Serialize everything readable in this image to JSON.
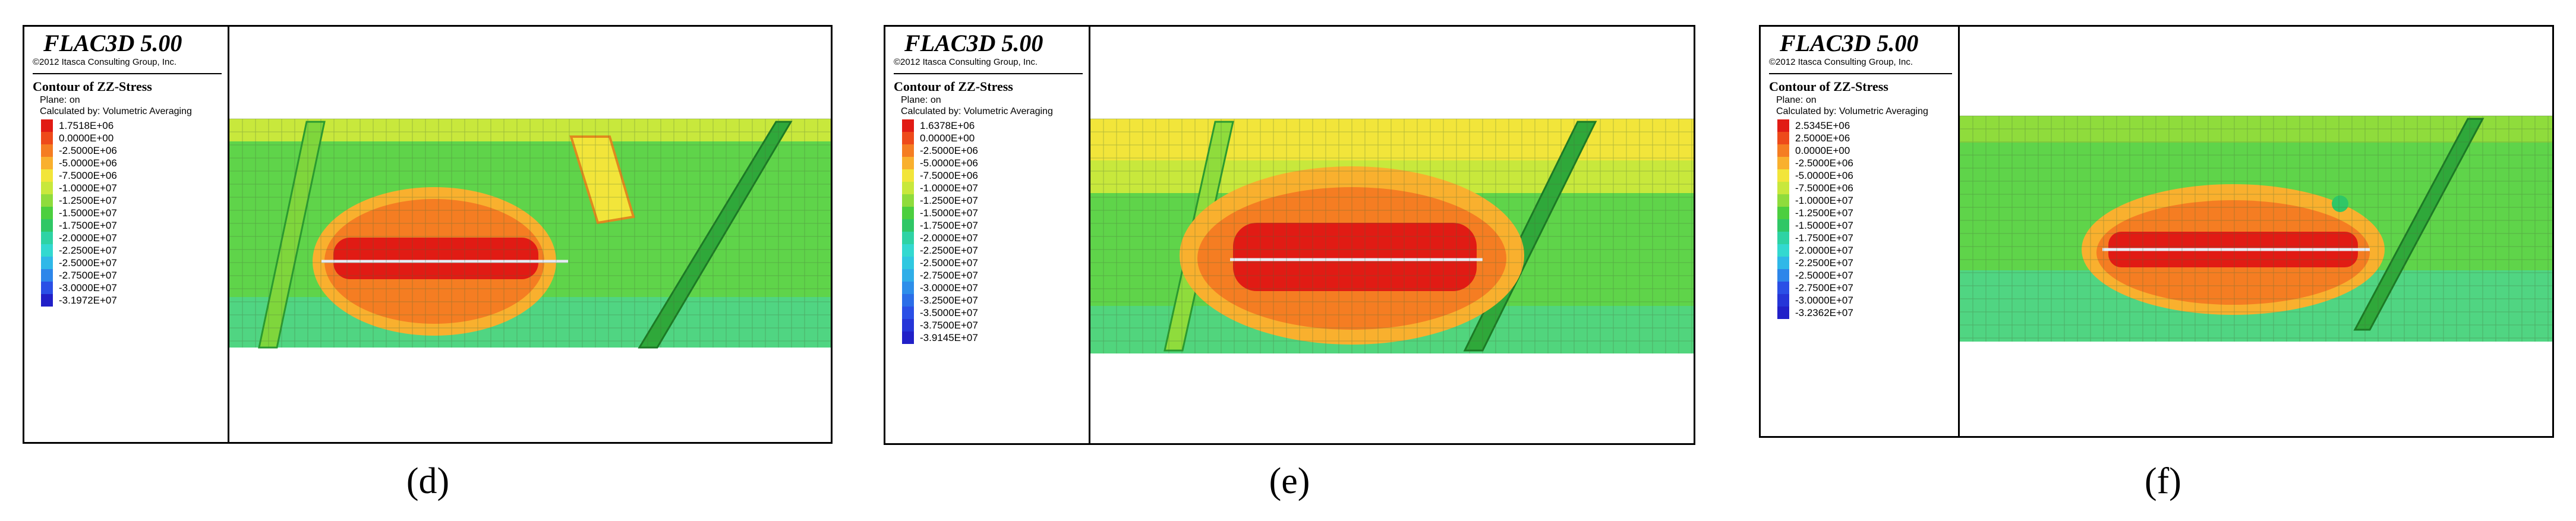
{
  "panels": [
    {
      "id": "d",
      "app_title": "FLAC3D 5.00",
      "copyright": "©2012 Itasca Consulting Group, Inc.",
      "contour_title": "Contour of ZZ-Stress",
      "plane": "Plane: on",
      "calculated_by": "Calculated by: Volumetric Averaging",
      "legend": [
        {
          "label": "1.7518E+06",
          "color": "#e11b14"
        },
        {
          "label": "0.0000E+00",
          "color": "#ee4a1a"
        },
        {
          "label": "-2.5000E+06",
          "color": "#f57d22"
        },
        {
          "label": "-5.0000E+06",
          "color": "#f9b02e"
        },
        {
          "label": "-7.5000E+06",
          "color": "#f2e53a"
        },
        {
          "label": "-1.0000E+07",
          "color": "#c8e83c"
        },
        {
          "label": "-1.2500E+07",
          "color": "#8fdc3c"
        },
        {
          "label": "-1.5000E+07",
          "color": "#4ccf3f"
        },
        {
          "label": "-1.7500E+07",
          "color": "#2fc766"
        },
        {
          "label": "-2.0000E+07",
          "color": "#2ed3a4"
        },
        {
          "label": "-2.2500E+07",
          "color": "#33d9d0"
        },
        {
          "label": "-2.5000E+07",
          "color": "#2fb8e8"
        },
        {
          "label": "-2.7500E+07",
          "color": "#2d86ea"
        },
        {
          "label": "-3.0000E+07",
          "color": "#2a4fe6"
        },
        {
          "label": "-3.1972E+07",
          "color": "#2120c8"
        }
      ],
      "caption": "(d)"
    },
    {
      "id": "e",
      "app_title": "FLAC3D 5.00",
      "copyright": "©2012 Itasca Consulting Group, Inc.",
      "contour_title": "Contour of ZZ-Stress",
      "plane": "Plane: on",
      "calculated_by": "Calculated by: Volumetric Averaging",
      "legend": [
        {
          "label": "1.6378E+06",
          "color": "#e11b14"
        },
        {
          "label": "0.0000E+00",
          "color": "#ee4a1a"
        },
        {
          "label": "-2.5000E+06",
          "color": "#f57d22"
        },
        {
          "label": "-5.0000E+06",
          "color": "#f9b02e"
        },
        {
          "label": "-7.5000E+06",
          "color": "#f2e53a"
        },
        {
          "label": "-1.0000E+07",
          "color": "#c8e83c"
        },
        {
          "label": "-1.2500E+07",
          "color": "#8fdc3c"
        },
        {
          "label": "-1.5000E+07",
          "color": "#4ccf3f"
        },
        {
          "label": "-1.7500E+07",
          "color": "#2fc766"
        },
        {
          "label": "-2.0000E+07",
          "color": "#2ed3a4"
        },
        {
          "label": "-2.2500E+07",
          "color": "#33d9d0"
        },
        {
          "label": "-2.5000E+07",
          "color": "#2fc8e0"
        },
        {
          "label": "-2.7500E+07",
          "color": "#2faee8"
        },
        {
          "label": "-3.0000E+07",
          "color": "#2d8eea"
        },
        {
          "label": "-3.2500E+07",
          "color": "#2b6ee8"
        },
        {
          "label": "-3.5000E+07",
          "color": "#2a4fe6"
        },
        {
          "label": "-3.7500E+07",
          "color": "#2535d8"
        },
        {
          "label": "-3.9145E+07",
          "color": "#2120c8"
        }
      ],
      "caption": "(e)"
    },
    {
      "id": "f",
      "app_title": "FLAC3D 5.00",
      "copyright": "©2012 Itasca Consulting Group, Inc.",
      "contour_title": "Contour of ZZ-Stress",
      "plane": "Plane: on",
      "calculated_by": "Calculated by: Volumetric Averaging",
      "legend": [
        {
          "label": "2.5345E+06",
          "color": "#e11b14"
        },
        {
          "label": "2.5000E+06",
          "color": "#ee4a1a"
        },
        {
          "label": "0.0000E+00",
          "color": "#f57d22"
        },
        {
          "label": "-2.5000E+06",
          "color": "#f9b02e"
        },
        {
          "label": "-5.0000E+06",
          "color": "#f2e53a"
        },
        {
          "label": "-7.5000E+06",
          "color": "#c8e83c"
        },
        {
          "label": "-1.0000E+07",
          "color": "#8fdc3c"
        },
        {
          "label": "-1.2500E+07",
          "color": "#4ccf3f"
        },
        {
          "label": "-1.5000E+07",
          "color": "#2fc766"
        },
        {
          "label": "-1.7500E+07",
          "color": "#2ed3a4"
        },
        {
          "label": "-2.0000E+07",
          "color": "#33d9d0"
        },
        {
          "label": "-2.2500E+07",
          "color": "#2fb8e8"
        },
        {
          "label": "-2.5000E+07",
          "color": "#2d86ea"
        },
        {
          "label": "-2.7500E+07",
          "color": "#2a4fe6"
        },
        {
          "label": "-3.0000E+07",
          "color": "#2535d8"
        },
        {
          "label": "-3.2362E+07",
          "color": "#2120c8"
        }
      ],
      "caption": "(f)"
    }
  ]
}
